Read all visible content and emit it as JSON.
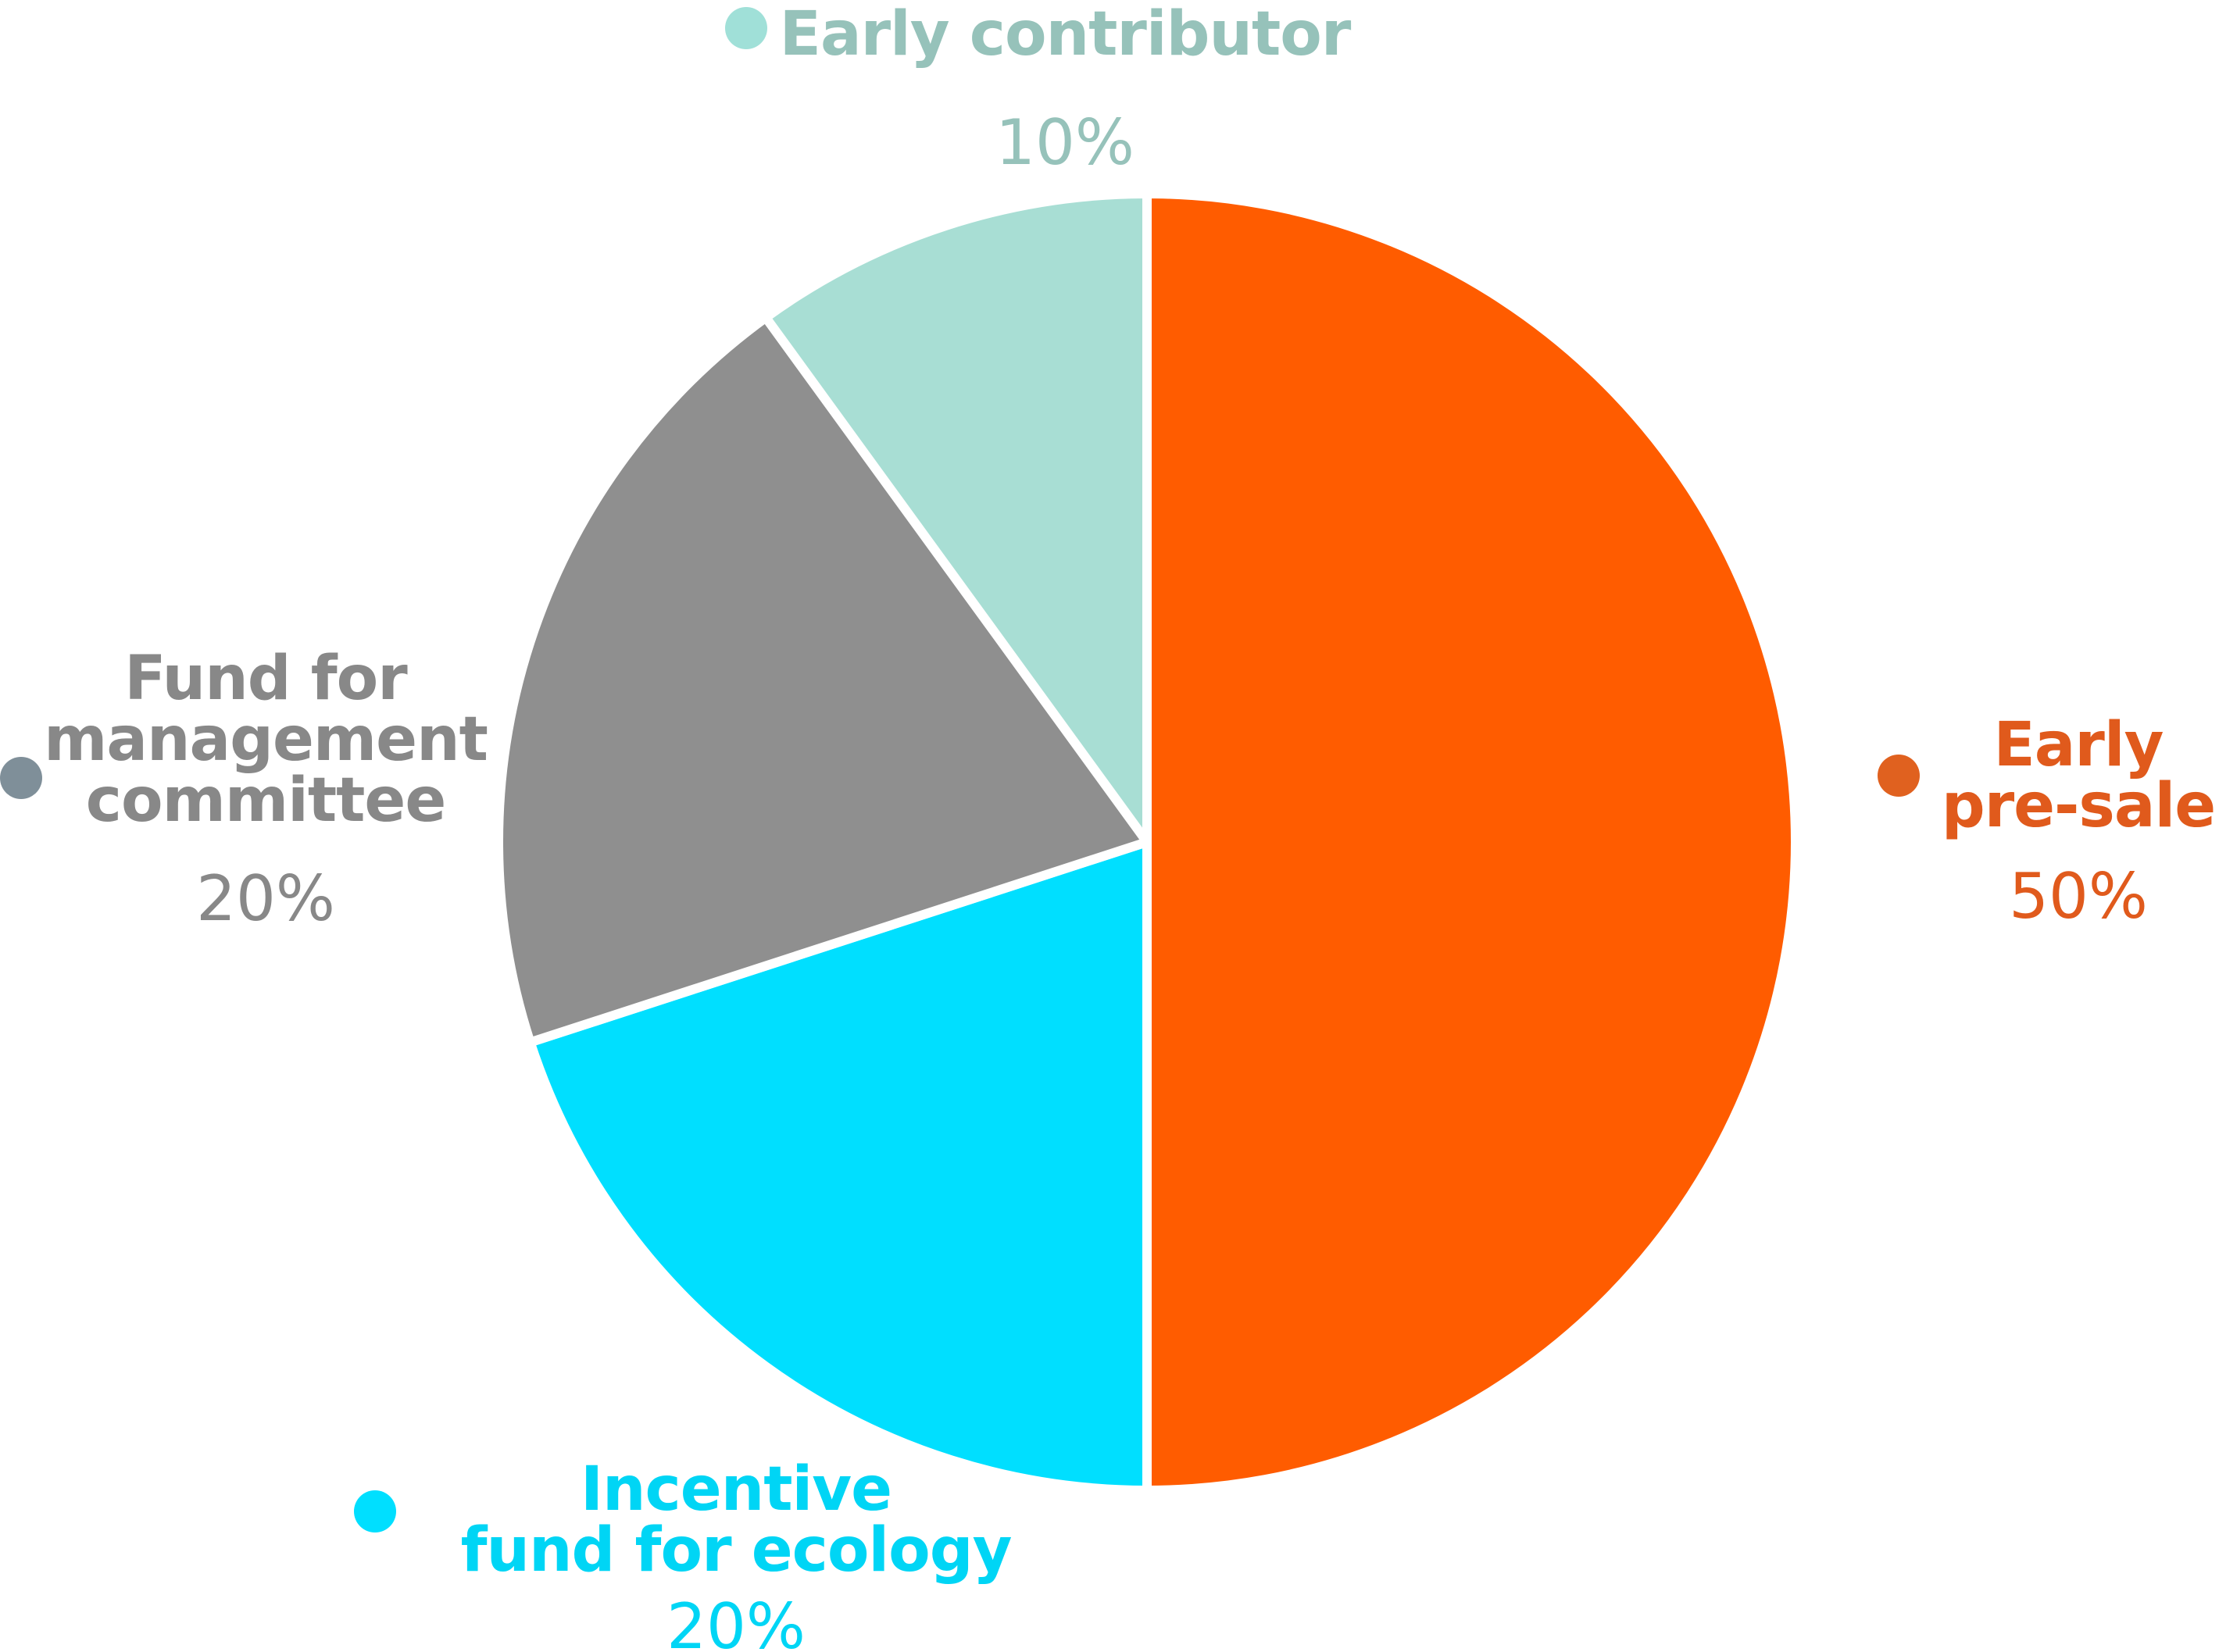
{
  "chart_data": {
    "type": "pie",
    "title": "",
    "slices": [
      {
        "id": "early-pre-sale",
        "label_lines": [
          "Early",
          "pre-sale"
        ],
        "value": 50,
        "percent_label": "50%",
        "color": "#ff5c00",
        "label_color": "#e05a1c",
        "dot_color": "#e0611f"
      },
      {
        "id": "incentive-fund-for-ecology",
        "label_lines": [
          "Incentive",
          "fund for ecology"
        ],
        "value": 20,
        "percent_label": "20%",
        "color": "#00dfff",
        "label_color": "#00d5f5",
        "dot_color": "#00dfff"
      },
      {
        "id": "fund-for-management-committee",
        "label_lines": [
          "Fund for",
          "management",
          "committee"
        ],
        "value": 20,
        "percent_label": "20%",
        "color": "#8f8f8f",
        "label_color": "#888888",
        "dot_color": "#7f8f99"
      },
      {
        "id": "early-contributor",
        "label_lines": [
          "Early contributor"
        ],
        "value": 10,
        "percent_label": "10%",
        "color": "#a8ded4",
        "label_color": "#96c2ba",
        "dot_color": "#a0e0d8"
      }
    ]
  }
}
